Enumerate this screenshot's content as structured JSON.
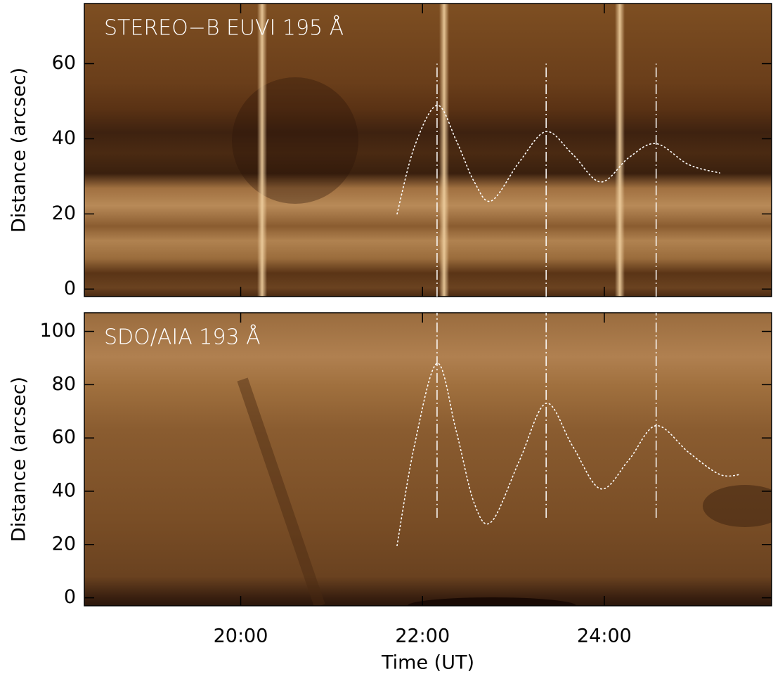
{
  "chart_data": [
    {
      "type": "line",
      "title": "STEREO−B EUVI 195 Å",
      "ylabel": "Distance (arcsec)",
      "xlim": [
        18.28,
        25.84
      ],
      "xticks": [
        20,
        22,
        24
      ],
      "ylim": [
        -2,
        76
      ],
      "yticks": [
        0,
        20,
        40,
        60
      ],
      "curve": {
        "color": "#ffffff",
        "x": [
          21.72,
          21.91,
          22.16,
          22.37,
          22.57,
          22.76,
          23.07,
          23.36,
          23.65,
          23.96,
          24.27,
          24.57,
          24.93,
          25.27
        ],
        "values": [
          20,
          37.8,
          48.9,
          39.6,
          28.5,
          23.5,
          34,
          41.9,
          35.9,
          28.5,
          35,
          38.7,
          33.1,
          30.9
        ]
      },
      "vlines": [
        22.16,
        23.36,
        24.57
      ],
      "vline_span": [
        -2,
        60
      ]
    },
    {
      "type": "line",
      "title": "SDO/AIA 193 Å",
      "ylabel": "Distance (arcsec)",
      "xlabel": "Time (UT)",
      "xlim": [
        18.28,
        25.84
      ],
      "xticks": [
        {
          "value": 20,
          "label": "20:00"
        },
        {
          "value": 22,
          "label": "22:00"
        },
        {
          "value": 24,
          "label": "24:00"
        }
      ],
      "ylim": [
        -3,
        107
      ],
      "yticks": [
        0,
        20,
        40,
        60,
        80,
        100
      ],
      "curve": {
        "color": "#ffffff",
        "x": [
          21.72,
          21.91,
          22.16,
          22.37,
          22.57,
          22.76,
          23.07,
          23.36,
          23.65,
          23.96,
          24.27,
          24.57,
          24.93,
          25.27,
          25.5
        ],
        "values": [
          19.6,
          57,
          88,
          62.7,
          35.4,
          28.6,
          51.8,
          73,
          57,
          40.9,
          51.8,
          64.6,
          54.5,
          46.3,
          46.3
        ]
      },
      "vlines": [
        22.16,
        23.36,
        24.57
      ],
      "vline_span": [
        30,
        107
      ]
    }
  ]
}
